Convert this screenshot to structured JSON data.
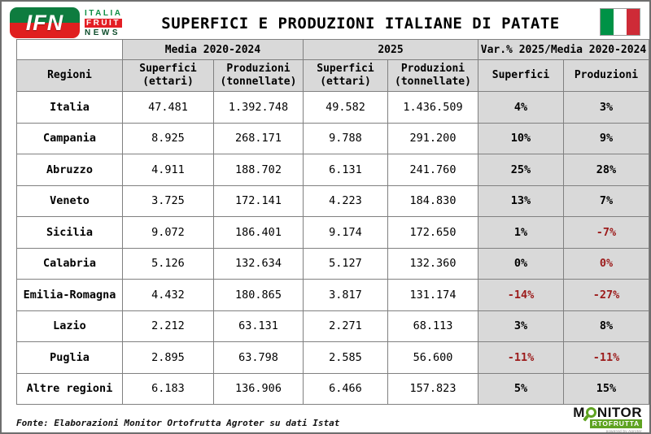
{
  "header": {
    "title": "SUPERFICI E PRODUZIONI ITALIANE DI PATATE",
    "ifn_logo": {
      "acronym": "IFN",
      "word1": "ITALIA",
      "word2": "FRUIT",
      "word3": "NEWS"
    }
  },
  "table": {
    "group_headers": {
      "media": "Media 2020-2024",
      "y2025": "2025",
      "var": "Var.% 2025/Media 2020-2024"
    },
    "col_headers": {
      "regioni": "Regioni",
      "superfici_ettari": "Superfici\n(ettari)",
      "produzioni_tonnellate": "Produzioni\n(tonnellate)",
      "superfici": "Superfici",
      "produzioni": "Produzioni"
    },
    "rows": [
      {
        "region": "Italia",
        "values": [
          "47.481",
          "1.392.748",
          "49.582",
          "1.436.509"
        ],
        "var": [
          {
            "text": "4%",
            "negative": false
          },
          {
            "text": "3%",
            "negative": false
          }
        ]
      },
      {
        "region": "Campania",
        "values": [
          "8.925",
          "268.171",
          "9.788",
          "291.200"
        ],
        "var": [
          {
            "text": "10%",
            "negative": false
          },
          {
            "text": "9%",
            "negative": false
          }
        ]
      },
      {
        "region": "Abruzzo",
        "values": [
          "4.911",
          "188.702",
          "6.131",
          "241.760"
        ],
        "var": [
          {
            "text": "25%",
            "negative": false
          },
          {
            "text": "28%",
            "negative": false
          }
        ]
      },
      {
        "region": "Veneto",
        "values": [
          "3.725",
          "172.141",
          "4.223",
          "184.830"
        ],
        "var": [
          {
            "text": "13%",
            "negative": false
          },
          {
            "text": "7%",
            "negative": false
          }
        ]
      },
      {
        "region": "Sicilia",
        "values": [
          "9.072",
          "186.401",
          "9.174",
          "172.650"
        ],
        "var": [
          {
            "text": "1%",
            "negative": false
          },
          {
            "text": "-7%",
            "negative": true
          }
        ]
      },
      {
        "region": "Calabria",
        "values": [
          "5.126",
          "132.634",
          "5.127",
          "132.360"
        ],
        "var": [
          {
            "text": "0%",
            "negative": false
          },
          {
            "text": "0%",
            "negative": true
          }
        ]
      },
      {
        "region": "Emilia-Romagna",
        "values": [
          "4.432",
          "180.865",
          "3.817",
          "131.174"
        ],
        "var": [
          {
            "text": "-14%",
            "negative": true
          },
          {
            "text": "-27%",
            "negative": true
          }
        ]
      },
      {
        "region": "Lazio",
        "values": [
          "2.212",
          "63.131",
          "2.271",
          "68.113"
        ],
        "var": [
          {
            "text": "3%",
            "negative": false
          },
          {
            "text": "8%",
            "negative": false
          }
        ]
      },
      {
        "region": "Puglia",
        "values": [
          "2.895",
          "63.798",
          "2.585",
          "56.600"
        ],
        "var": [
          {
            "text": "-11%",
            "negative": true
          },
          {
            "text": "-11%",
            "negative": true
          }
        ]
      },
      {
        "region": "Altre regioni",
        "values": [
          "6.183",
          "136.906",
          "6.466",
          "157.823"
        ],
        "var": [
          {
            "text": "5%",
            "negative": false
          },
          {
            "text": "15%",
            "negative": false
          }
        ]
      }
    ]
  },
  "footer": {
    "source": "Fonte: Elaborazioni Monitor Ortofrutta Agroter su dati Istat"
  },
  "monitor_logo": {
    "m": "M",
    "nitor": "NITOR",
    "rtofrutta": "RTOFRUTTA",
    "powered": "powered by Agroter"
  },
  "colors": {
    "header_bg": "#d9d9d9",
    "negative_red": "#9c1b1b",
    "border_gray": "#808080",
    "flag_green": "#009246",
    "flag_red": "#ce2b37",
    "ifn_green": "#0e7c3f",
    "ifn_red": "#e01f1f",
    "monitor_green": "#5fa321"
  }
}
